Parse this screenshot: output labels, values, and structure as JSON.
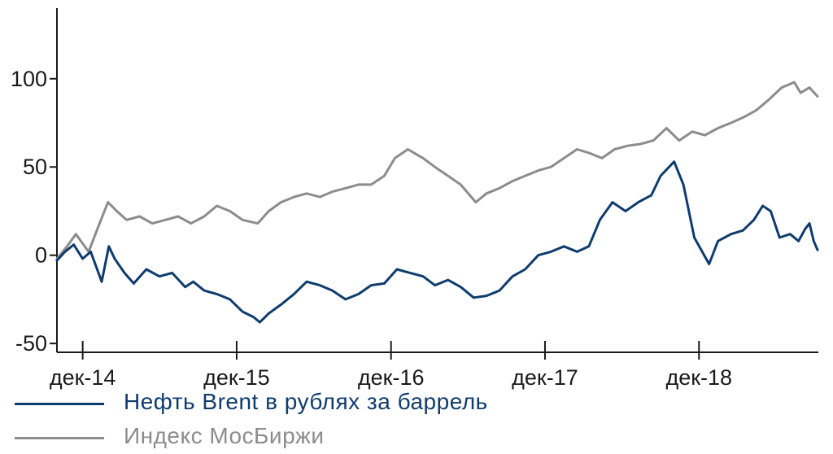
{
  "chart_data": {
    "type": "line",
    "colors": {
      "brent": "#0f3c6e",
      "moex": "#8c8c8c",
      "axis": "#1a1a1a"
    },
    "ylim": [
      -55,
      140
    ],
    "y_ticks": [
      -50,
      0,
      50,
      100
    ],
    "y_tick_labels": [
      "-50",
      "0",
      "50",
      "100"
    ],
    "xlim": [
      "2014-10-01",
      "2019-09-10"
    ],
    "x_ticks": [
      "2014-12-01",
      "2015-12-01",
      "2016-12-01",
      "2017-12-01",
      "2018-12-01"
    ],
    "x_tick_labels": [
      "дек-14",
      "дек-15",
      "дек-16",
      "дек-17",
      "дек-18"
    ],
    "legend_position": "bottom",
    "series": [
      {
        "key": "brent",
        "name": "Нефть Brent в рублях за баррель",
        "points": [
          [
            "2014-10-01",
            -3
          ],
          [
            "2014-10-20",
            2
          ],
          [
            "2014-11-10",
            6
          ],
          [
            "2014-12-01",
            -2
          ],
          [
            "2014-12-20",
            2
          ],
          [
            "2015-01-15",
            -15
          ],
          [
            "2015-02-01",
            5
          ],
          [
            "2015-02-15",
            -2
          ],
          [
            "2015-03-10",
            -10
          ],
          [
            "2015-04-01",
            -16
          ],
          [
            "2015-05-01",
            -8
          ],
          [
            "2015-06-01",
            -12
          ],
          [
            "2015-07-01",
            -10
          ],
          [
            "2015-08-01",
            -18
          ],
          [
            "2015-08-20",
            -15
          ],
          [
            "2015-09-15",
            -20
          ],
          [
            "2015-10-15",
            -22
          ],
          [
            "2015-11-15",
            -25
          ],
          [
            "2015-12-15",
            -32
          ],
          [
            "2016-01-10",
            -35
          ],
          [
            "2016-01-25",
            -38
          ],
          [
            "2016-02-15",
            -33
          ],
          [
            "2016-03-15",
            -28
          ],
          [
            "2016-04-15",
            -22
          ],
          [
            "2016-05-15",
            -15
          ],
          [
            "2016-06-15",
            -17
          ],
          [
            "2016-07-15",
            -20
          ],
          [
            "2016-08-15",
            -25
          ],
          [
            "2016-09-15",
            -22
          ],
          [
            "2016-10-15",
            -17
          ],
          [
            "2016-11-15",
            -16
          ],
          [
            "2016-12-15",
            -8
          ],
          [
            "2017-01-15",
            -10
          ],
          [
            "2017-02-15",
            -12
          ],
          [
            "2017-03-15",
            -17
          ],
          [
            "2017-04-15",
            -14
          ],
          [
            "2017-05-15",
            -18
          ],
          [
            "2017-06-15",
            -24
          ],
          [
            "2017-07-15",
            -23
          ],
          [
            "2017-08-15",
            -20
          ],
          [
            "2017-09-15",
            -12
          ],
          [
            "2017-10-15",
            -8
          ],
          [
            "2017-11-15",
            0
          ],
          [
            "2017-12-15",
            2
          ],
          [
            "2018-01-15",
            5
          ],
          [
            "2018-02-15",
            2
          ],
          [
            "2018-03-15",
            5
          ],
          [
            "2018-04-10",
            20
          ],
          [
            "2018-05-10",
            30
          ],
          [
            "2018-06-10",
            25
          ],
          [
            "2018-07-10",
            30
          ],
          [
            "2018-08-10",
            34
          ],
          [
            "2018-09-01",
            45
          ],
          [
            "2018-10-03",
            53
          ],
          [
            "2018-10-25",
            40
          ],
          [
            "2018-11-20",
            10
          ],
          [
            "2018-12-25",
            -5
          ],
          [
            "2019-01-15",
            8
          ],
          [
            "2019-02-15",
            12
          ],
          [
            "2019-03-15",
            14
          ],
          [
            "2019-04-10",
            20
          ],
          [
            "2019-05-01",
            28
          ],
          [
            "2019-05-20",
            25
          ],
          [
            "2019-06-10",
            10
          ],
          [
            "2019-07-05",
            12
          ],
          [
            "2019-07-25",
            8
          ],
          [
            "2019-08-10",
            15
          ],
          [
            "2019-08-20",
            18
          ],
          [
            "2019-08-30",
            8
          ],
          [
            "2019-09-08",
            3
          ]
        ]
      },
      {
        "key": "moex",
        "name": "Индекс МосБиржи",
        "points": [
          [
            "2014-10-01",
            -2
          ],
          [
            "2014-10-25",
            5
          ],
          [
            "2014-11-15",
            12
          ],
          [
            "2014-12-15",
            2
          ],
          [
            "2015-01-10",
            18
          ],
          [
            "2015-01-30",
            30
          ],
          [
            "2015-02-20",
            25
          ],
          [
            "2015-03-15",
            20
          ],
          [
            "2015-04-15",
            22
          ],
          [
            "2015-05-15",
            18
          ],
          [
            "2015-06-15",
            20
          ],
          [
            "2015-07-15",
            22
          ],
          [
            "2015-08-15",
            18
          ],
          [
            "2015-09-15",
            22
          ],
          [
            "2015-10-15",
            28
          ],
          [
            "2015-11-15",
            25
          ],
          [
            "2015-12-15",
            20
          ],
          [
            "2016-01-20",
            18
          ],
          [
            "2016-02-15",
            25
          ],
          [
            "2016-03-15",
            30
          ],
          [
            "2016-04-15",
            33
          ],
          [
            "2016-05-15",
            35
          ],
          [
            "2016-06-15",
            33
          ],
          [
            "2016-07-15",
            36
          ],
          [
            "2016-08-15",
            38
          ],
          [
            "2016-09-15",
            40
          ],
          [
            "2016-10-15",
            40
          ],
          [
            "2016-11-15",
            45
          ],
          [
            "2016-12-10",
            55
          ],
          [
            "2017-01-10",
            60
          ],
          [
            "2017-02-15",
            55
          ],
          [
            "2017-03-15",
            50
          ],
          [
            "2017-04-15",
            45
          ],
          [
            "2017-05-15",
            40
          ],
          [
            "2017-06-20",
            30
          ],
          [
            "2017-07-15",
            35
          ],
          [
            "2017-08-15",
            38
          ],
          [
            "2017-09-15",
            42
          ],
          [
            "2017-10-15",
            45
          ],
          [
            "2017-11-15",
            48
          ],
          [
            "2017-12-15",
            50
          ],
          [
            "2018-01-15",
            55
          ],
          [
            "2018-02-15",
            60
          ],
          [
            "2018-03-15",
            58
          ],
          [
            "2018-04-15",
            55
          ],
          [
            "2018-05-15",
            60
          ],
          [
            "2018-06-15",
            62
          ],
          [
            "2018-07-15",
            63
          ],
          [
            "2018-08-15",
            65
          ],
          [
            "2018-09-15",
            72
          ],
          [
            "2018-10-15",
            65
          ],
          [
            "2018-11-15",
            70
          ],
          [
            "2018-12-15",
            68
          ],
          [
            "2019-01-15",
            72
          ],
          [
            "2019-02-15",
            75
          ],
          [
            "2019-03-15",
            78
          ],
          [
            "2019-04-15",
            82
          ],
          [
            "2019-05-15",
            88
          ],
          [
            "2019-06-15",
            95
          ],
          [
            "2019-07-15",
            98
          ],
          [
            "2019-07-30",
            92
          ],
          [
            "2019-08-20",
            95
          ],
          [
            "2019-09-08",
            90
          ]
        ]
      }
    ]
  }
}
